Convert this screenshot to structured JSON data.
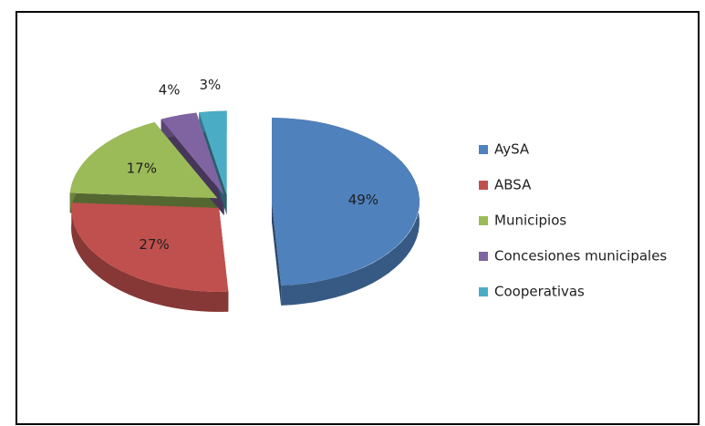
{
  "chart_data": {
    "type": "pie",
    "categories": [
      "AySA",
      "ABSA",
      "Municipios",
      "Concesiones municipales",
      "Cooperativas"
    ],
    "values": [
      49,
      27,
      17,
      4,
      3
    ],
    "value_labels": [
      "49%",
      "27%",
      "17%",
      "4%",
      "3%"
    ],
    "colors": [
      "#4f81bd",
      "#c0504d",
      "#9bbb59",
      "#8064a2",
      "#4bacc6"
    ],
    "legend": "right"
  }
}
